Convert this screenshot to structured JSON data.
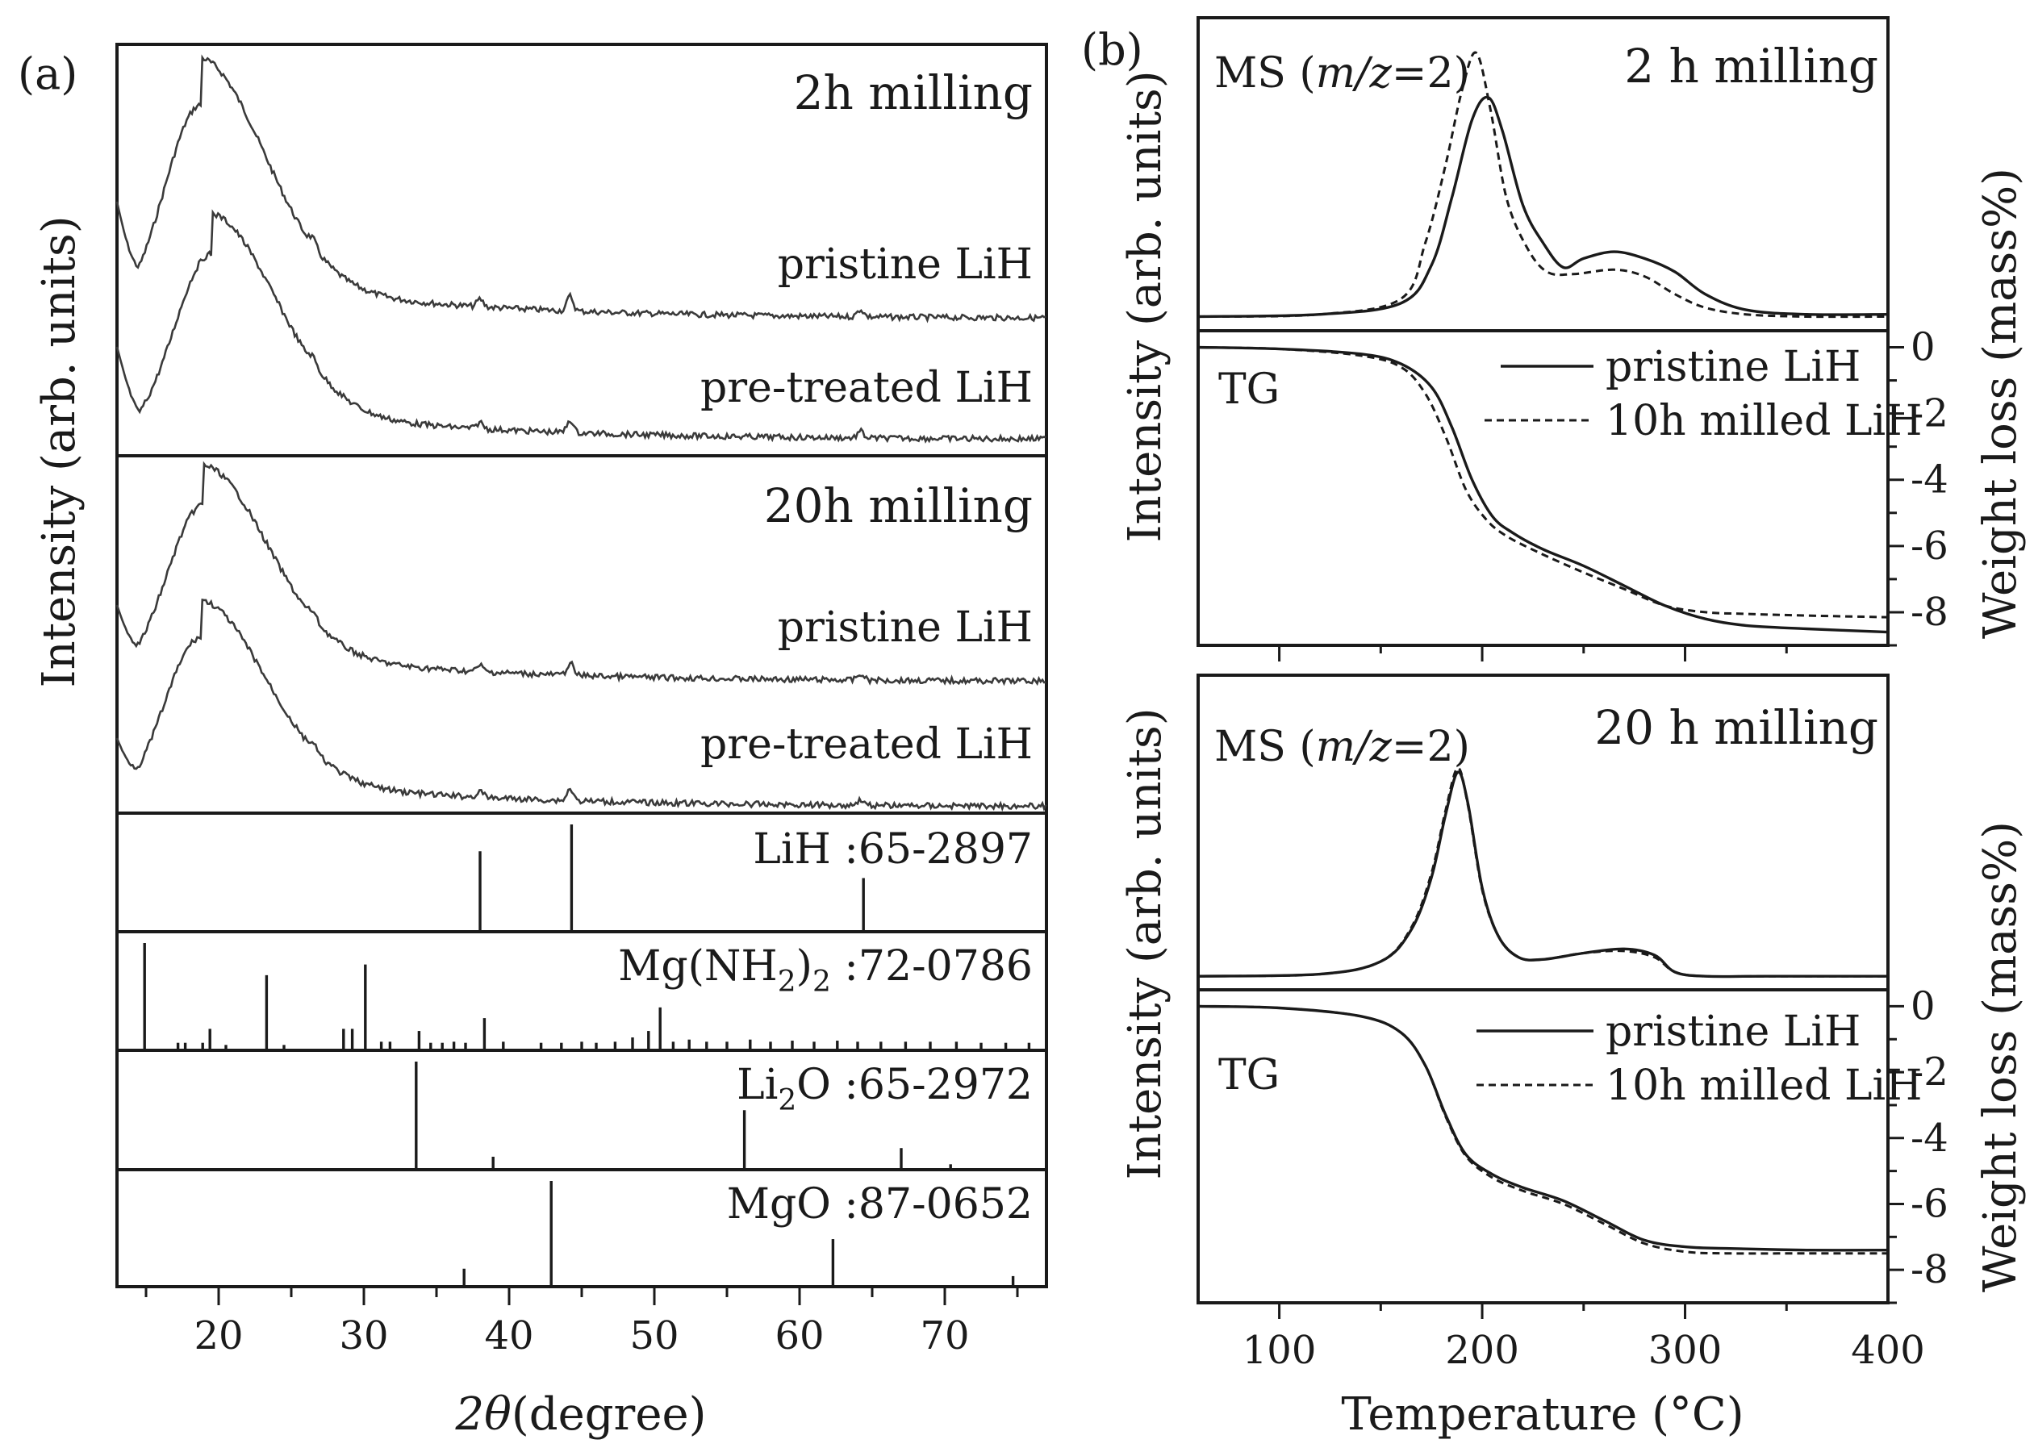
{
  "chart_data": [
    {
      "panel": "(a)",
      "type": "line",
      "xlabel_symbol": "2θ",
      "xlabel_unit": "(degree)",
      "ylabel": "Intensity (arb. units)",
      "xlim": [
        13,
        77
      ],
      "xticks": [
        20,
        30,
        40,
        50,
        60,
        70
      ],
      "subplots": [
        {
          "title": "2h milling",
          "series": [
            {
              "name": "pristine LiH",
              "peak_x": 18.8,
              "reflections": [
                38.0,
                44.2,
                64.2
              ]
            },
            {
              "name": "pre-treated LiH",
              "peak_x": 19.5,
              "reflections": [
                38.0,
                44.2,
                64.2
              ]
            }
          ]
        },
        {
          "title": "20h milling",
          "series": [
            {
              "name": "pristine LiH",
              "peak_x": 19.0,
              "reflections": [
                38.0,
                44.2,
                64.2
              ]
            },
            {
              "name": "pre-treated LiH",
              "peak_x": 18.8,
              "reflections": [
                38.0,
                44.2,
                64.2
              ]
            }
          ]
        }
      ],
      "references": [
        {
          "label": "LiH :65-2897",
          "lines": [
            [
              38.0,
              0.75
            ],
            [
              44.3,
              1.0
            ],
            [
              64.4,
              0.5
            ]
          ]
        },
        {
          "label_main": "Mg(NH",
          "label_sub": "2",
          "label_close": ")",
          "label_sub2": "2",
          "label_code": " :72-0786",
          "lines": [
            [
              14.9,
              1.0
            ],
            [
              17.2,
              0.07
            ],
            [
              17.7,
              0.07
            ],
            [
              18.9,
              0.07
            ],
            [
              19.4,
              0.2
            ],
            [
              20.5,
              0.05
            ],
            [
              23.3,
              0.7
            ],
            [
              24.5,
              0.05
            ],
            [
              28.6,
              0.2
            ],
            [
              29.2,
              0.2
            ],
            [
              30.1,
              0.8
            ],
            [
              31.2,
              0.08
            ],
            [
              31.8,
              0.08
            ],
            [
              33.8,
              0.18
            ],
            [
              34.6,
              0.07
            ],
            [
              35.4,
              0.07
            ],
            [
              36.2,
              0.08
            ],
            [
              37.0,
              0.07
            ],
            [
              38.3,
              0.3
            ],
            [
              39.6,
              0.08
            ],
            [
              42.2,
              0.07
            ],
            [
              43.6,
              0.07
            ],
            [
              45.0,
              0.08
            ],
            [
              46.0,
              0.07
            ],
            [
              47.3,
              0.08
            ],
            [
              48.5,
              0.12
            ],
            [
              49.6,
              0.18
            ],
            [
              50.4,
              0.4
            ],
            [
              51.3,
              0.08
            ],
            [
              52.4,
              0.1
            ],
            [
              53.6,
              0.08
            ],
            [
              55.0,
              0.08
            ],
            [
              56.6,
              0.1
            ],
            [
              58.0,
              0.08
            ],
            [
              59.5,
              0.09
            ],
            [
              61.0,
              0.08
            ],
            [
              62.6,
              0.09
            ],
            [
              64.0,
              0.08
            ],
            [
              65.6,
              0.08
            ],
            [
              67.3,
              0.08
            ],
            [
              69.0,
              0.08
            ],
            [
              70.8,
              0.08
            ],
            [
              72.5,
              0.07
            ],
            [
              74.2,
              0.07
            ],
            [
              75.8,
              0.07
            ]
          ]
        },
        {
          "label_main": "Li",
          "label_sub": "2",
          "label_code": "O :65-2972",
          "lines": [
            [
              33.6,
              1.0
            ],
            [
              38.9,
              0.12
            ],
            [
              56.2,
              0.55
            ],
            [
              67.0,
              0.2
            ],
            [
              70.4,
              0.05
            ]
          ]
        },
        {
          "label": "MgO :87-0652",
          "lines": [
            [
              36.9,
              0.17
            ],
            [
              42.9,
              1.0
            ],
            [
              62.3,
              0.45
            ],
            [
              74.7,
              0.1
            ]
          ]
        }
      ]
    },
    {
      "panel": "(b)",
      "type": "line",
      "xlabel": "Temperature (°C)",
      "ylabel_left": "Intensity (arb. units)",
      "ylabel_right": "Weight loss (mass%)",
      "xlim": [
        60,
        400
      ],
      "xticks": [
        100,
        200,
        300,
        400
      ],
      "tg_ylim": [
        -9,
        0.5
      ],
      "tg_yticks": [
        0,
        -2,
        -4,
        -6,
        -8
      ],
      "legend": [
        "pristine LiH",
        "10h milled LiH"
      ],
      "subplots": [
        {
          "title": "2 h milling",
          "ms_label_pre": "MS (",
          "ms_label_em": "m/z",
          "ms_label_post": "=2)",
          "tg_label": "TG",
          "ms_series": [
            {
              "name": "pristine LiH",
              "x": [
                60,
                120,
                160,
                175,
                185,
                195,
                203,
                210,
                220,
                230,
                240,
                250,
                265,
                280,
                295,
                310,
                330,
                360,
                400
              ],
              "y": [
                0.02,
                0.03,
                0.08,
                0.25,
                0.55,
                0.9,
                1.0,
                0.85,
                0.52,
                0.35,
                0.24,
                0.28,
                0.31,
                0.28,
                0.22,
                0.12,
                0.05,
                0.03,
                0.03
              ]
            },
            {
              "name": "10h milled LiH",
              "x": [
                60,
                120,
                160,
                172,
                182,
                190,
                197,
                204,
                212,
                222,
                232,
                245,
                265,
                280,
                295,
                310,
                330,
                360,
                400
              ],
              "y": [
                0.02,
                0.03,
                0.1,
                0.35,
                0.7,
                1.03,
                1.2,
                0.95,
                0.55,
                0.33,
                0.22,
                0.21,
                0.23,
                0.2,
                0.12,
                0.06,
                0.03,
                0.02,
                0.02
              ]
            }
          ],
          "tg_series": [
            {
              "name": "pristine LiH",
              "x": [
                60,
                100,
                140,
                160,
                175,
                185,
                195,
                205,
                215,
                230,
                250,
                270,
                290,
                310,
                330,
                360,
                400
              ],
              "y": [
                0,
                -0.05,
                -0.2,
                -0.5,
                -1.2,
                -2.4,
                -4.0,
                -5.1,
                -5.6,
                -6.1,
                -6.6,
                -7.2,
                -7.8,
                -8.2,
                -8.4,
                -8.5,
                -8.6
              ]
            },
            {
              "name": "10h milled LiH",
              "x": [
                60,
                100,
                140,
                160,
                172,
                182,
                192,
                202,
                212,
                228,
                250,
                270,
                290,
                310,
                330,
                360,
                400
              ],
              "y": [
                0,
                -0.05,
                -0.25,
                -0.6,
                -1.4,
                -2.7,
                -4.3,
                -5.2,
                -5.7,
                -6.2,
                -6.8,
                -7.3,
                -7.8,
                -8.0,
                -8.05,
                -8.1,
                -8.15
              ]
            }
          ]
        },
        {
          "title": "20 h milling",
          "ms_label_pre": "MS (",
          "ms_label_em": "m/z",
          "ms_label_post": "=2)",
          "tg_label": "TG",
          "ms_series": [
            {
              "name": "pristine LiH",
              "x": [
                60,
                120,
                150,
                165,
                175,
                182,
                188,
                193,
                200,
                208,
                218,
                230,
                250,
                270,
                285,
                295,
                310,
                340,
                400
              ],
              "y": [
                0.03,
                0.04,
                0.1,
                0.25,
                0.5,
                0.8,
                1.0,
                0.85,
                0.45,
                0.22,
                0.12,
                0.11,
                0.14,
                0.16,
                0.13,
                0.05,
                0.03,
                0.03,
                0.03
              ]
            },
            {
              "name": "10h milled LiH",
              "x": [
                60,
                120,
                150,
                165,
                175,
                182,
                188,
                193,
                200,
                208,
                218,
                230,
                250,
                270,
                285,
                295,
                310,
                340,
                400
              ],
              "y": [
                0.03,
                0.04,
                0.1,
                0.26,
                0.52,
                0.82,
                1.02,
                0.84,
                0.44,
                0.22,
                0.12,
                0.11,
                0.14,
                0.15,
                0.12,
                0.05,
                0.03,
                0.03,
                0.03
              ]
            }
          ],
          "tg_series": [
            {
              "name": "pristine LiH",
              "x": [
                60,
                100,
                140,
                160,
                172,
                182,
                192,
                205,
                220,
                240,
                260,
                280,
                300,
                320,
                360,
                400
              ],
              "y": [
                0,
                -0.05,
                -0.3,
                -0.8,
                -1.8,
                -3.3,
                -4.5,
                -5.1,
                -5.5,
                -5.9,
                -6.5,
                -7.1,
                -7.3,
                -7.35,
                -7.4,
                -7.4
              ]
            },
            {
              "name": "10h milled LiH",
              "x": [
                60,
                100,
                140,
                160,
                172,
                182,
                192,
                205,
                220,
                240,
                260,
                280,
                300,
                320,
                360,
                400
              ],
              "y": [
                0,
                -0.05,
                -0.3,
                -0.8,
                -1.8,
                -3.35,
                -4.55,
                -5.2,
                -5.6,
                -6.0,
                -6.6,
                -7.2,
                -7.45,
                -7.5,
                -7.5,
                -7.5
              ]
            }
          ]
        }
      ]
    }
  ]
}
